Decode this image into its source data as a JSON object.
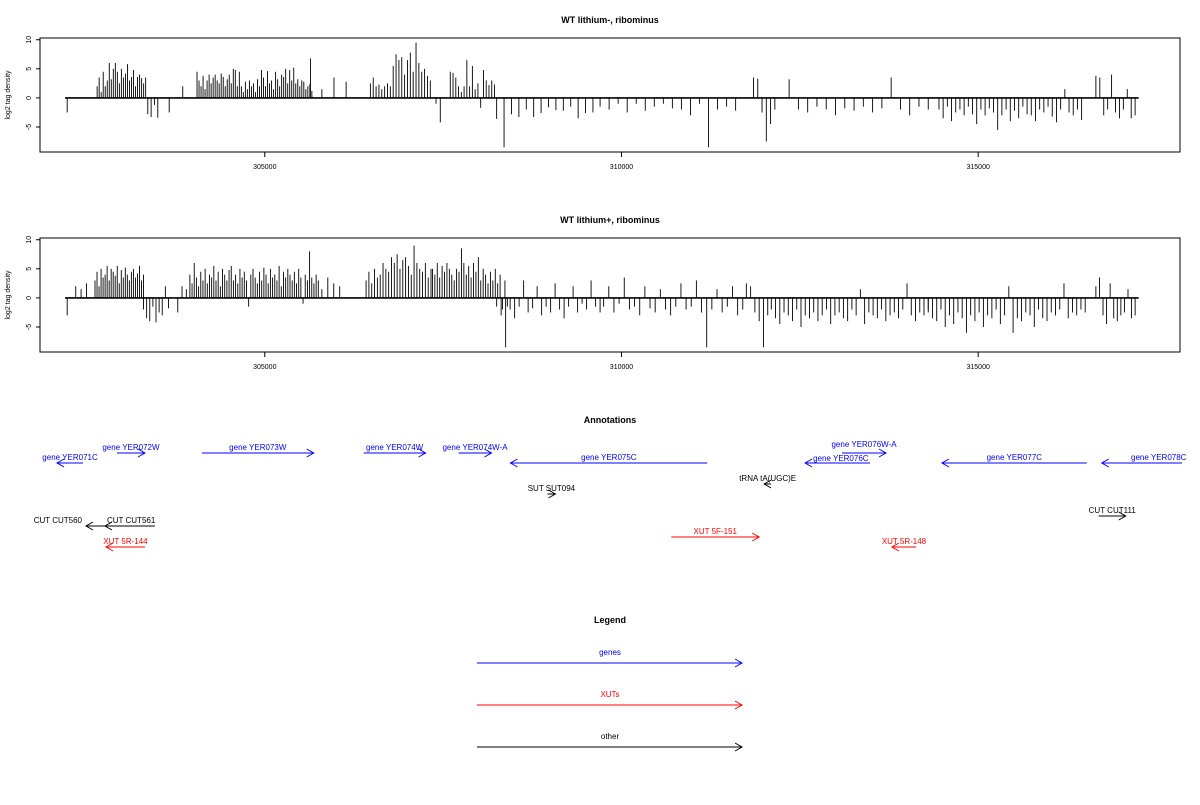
{
  "chart_data": [
    {
      "type": "bar",
      "title": "WT lithium-, ribominus",
      "ylabel": "log2 tag density",
      "xlabel": "",
      "xlim": [
        301849,
        317829
      ],
      "ylim": [
        -9.3,
        10.3
      ],
      "yticks": [
        "-5",
        "0",
        "5",
        "10"
      ],
      "xticks": [
        "305000",
        "310000",
        "315000"
      ],
      "baseline": [
        302200,
        317250
      ],
      "segments": [
        {
          "from": 302230,
          "to": 302230,
          "values": [
            -2.5
          ]
        },
        {
          "from": 302650,
          "to": 303330,
          "values": [
            2,
            3.5,
            1,
            4.5,
            2,
            3,
            6,
            3.2,
            5,
            6,
            4.5,
            2.5,
            5,
            3.5,
            4.2,
            5.8,
            3,
            3.6,
            4.8,
            2,
            3.6,
            4,
            3.4,
            2.5,
            3.5
          ]
        },
        {
          "from": 303360,
          "to": 303500,
          "values": [
            -2.8,
            -3.3,
            -1.2,
            -3.4
          ]
        },
        {
          "from": 303660,
          "to": 303660,
          "values": [
            -2.5
          ]
        },
        {
          "from": 303850,
          "to": 303850,
          "values": [
            2
          ]
        },
        {
          "from": 304050,
          "to": 305660,
          "values": [
            4.5,
            3,
            2,
            3.8,
            1.5,
            3,
            4,
            2.5,
            3.5,
            4,
            3,
            2.5,
            4.2,
            3.6,
            2,
            3.2,
            4,
            2.5,
            5,
            4.8,
            2,
            4.5,
            2,
            1,
            2.8,
            1.5,
            3,
            2,
            2.5,
            1,
            3.2,
            2,
            4.8,
            3.5,
            2,
            4.6,
            2.5,
            3,
            1.5,
            4.5,
            3.2,
            2,
            4,
            3.6,
            5,
            2.5,
            4.8,
            3,
            5.2,
            2.5,
            3.2,
            2,
            3,
            2.8,
            1.5,
            2,
            2.4,
            1.2
          ]
        },
        {
          "from": 305640,
          "to": 305640,
          "values": [
            6.8
          ]
        },
        {
          "from": 305800,
          "to": 306140,
          "values": [
            1.5,
            3.5,
            2.8
          ]
        },
        {
          "from": 306480,
          "to": 307320,
          "values": [
            2.5,
            3.5,
            2,
            2.3,
            1.5,
            2,
            2.5,
            2,
            5.5,
            7.5,
            6.5,
            7,
            4,
            6.5,
            7.8,
            4.5,
            9.5,
            6,
            4.5,
            5,
            3.8,
            3
          ]
        },
        {
          "from": 307400,
          "to": 307460,
          "values": [
            -1,
            -4.2
          ]
        },
        {
          "from": 307600,
          "to": 308220,
          "values": [
            4.5,
            4.3,
            3.5,
            2,
            1,
            2,
            6.5,
            2,
            5.5,
            1.5,
            2.5,
            -1.7,
            4.8,
            3,
            2.2,
            3,
            2.3
          ]
        },
        {
          "from": 308250,
          "to": 309600,
          "values": [
            -3.6,
            -8.5,
            -2.8,
            -3.3,
            -2,
            -3.3,
            -2.6,
            -1.6,
            -2.1,
            -2.2,
            -1.5,
            -3.5,
            -2.6,
            -2.5
          ]
        },
        {
          "from": 309700,
          "to": 311600,
          "values": [
            -1.5,
            -2,
            -1,
            -2.5,
            -1,
            -2.2,
            -1.5,
            -1,
            -1.8,
            -2,
            -3,
            -1,
            -8.5,
            -2,
            -1.5,
            -2.2
          ]
        },
        {
          "from": 311850,
          "to": 312150,
          "values": [
            3.5,
            3.3,
            -2.5,
            -7.5,
            -4.5,
            -2
          ]
        },
        {
          "from": 312350,
          "to": 314300,
          "values": [
            3.2,
            -2,
            -2.5,
            -1.5,
            -2,
            -3,
            -1.8,
            -2.2,
            -1.5,
            -2.5,
            -1.8,
            3.5,
            -2,
            -3,
            -1.5,
            -2
          ]
        },
        {
          "from": 314450,
          "to": 316450,
          "values": [
            -2,
            -3.5,
            -1.5,
            -4,
            -2.5,
            -2,
            -3,
            -1.5,
            -2.8,
            -4.5,
            -2,
            -3,
            -1.8,
            -2.5,
            -5.5,
            -3,
            -2,
            -4,
            -2.2,
            -3.5,
            -1.5,
            -2.8,
            -3,
            -4,
            -2,
            -2.5,
            -1.5,
            -3.2,
            -4.2,
            -2,
            1.5,
            -2.5,
            -3,
            -2,
            -3.8
          ]
        },
        {
          "from": 316650,
          "to": 317200,
          "values": [
            3.8,
            3.5,
            -3,
            -2,
            4,
            -2.5,
            -3.5,
            -2,
            1.5,
            -3.5,
            -3
          ]
        }
      ]
    },
    {
      "type": "bar",
      "title": "WT lithium+, ribominus",
      "ylabel": "log2 tag density",
      "xlabel": "",
      "xlim": [
        301849,
        317829
      ],
      "ylim": [
        -9.3,
        10.3
      ],
      "yticks": [
        "-5",
        "0",
        "5",
        "10"
      ],
      "xticks": [
        "305000",
        "310000",
        "315000"
      ],
      "baseline": [
        302200,
        317250
      ],
      "segments": [
        {
          "from": 302230,
          "to": 302230,
          "values": [
            -3
          ]
        },
        {
          "from": 302350,
          "to": 302500,
          "values": [
            2,
            1.5,
            2.5
          ]
        },
        {
          "from": 302620,
          "to": 303300,
          "values": [
            3,
            4.5,
            2,
            5,
            3.5,
            4,
            5.5,
            3,
            5,
            4.5,
            3.8,
            5.5,
            2.5,
            4.8,
            3.5,
            5.2,
            4,
            3,
            4.5,
            5,
            3.5,
            4.2,
            5.5,
            3,
            4
          ]
        },
        {
          "from": 303300,
          "to": 303650,
          "values": [
            -2,
            -3.5,
            -4,
            -1.5,
            -4.2,
            -2.5,
            -3,
            2,
            -1.8
          ]
        },
        {
          "from": 303780,
          "to": 303900,
          "values": [
            -2.5,
            2,
            1.5
          ]
        },
        {
          "from": 303950,
          "to": 305750,
          "values": [
            4,
            2.5,
            6,
            3.5,
            2,
            4.5,
            3,
            5,
            2.5,
            4,
            3.5,
            5.5,
            3,
            4.5,
            2,
            5,
            4,
            3,
            4.8,
            5.5,
            3,
            4,
            2.5,
            5,
            3.5,
            4.5,
            3,
            -1.5,
            4,
            5,
            3.5,
            2.5,
            4.5,
            3,
            5.2,
            4,
            2.5,
            5,
            3.5,
            4,
            3,
            5.5,
            2,
            4.5,
            3.5,
            5,
            4,
            3,
            4.5,
            2.5,
            5,
            3.5,
            -1,
            4,
            3,
            8,
            3.5,
            2.5,
            4,
            3
          ]
        },
        {
          "from": 305800,
          "to": 306050,
          "values": [
            1.5,
            3.5,
            2.5,
            2
          ]
        },
        {
          "from": 306420,
          "to": 307330,
          "values": [
            3,
            4.5,
            2.5,
            5,
            3.5,
            4,
            6,
            5,
            4.5,
            7,
            6,
            7.5,
            5,
            6.5,
            7,
            5.5,
            4,
            9,
            6,
            5,
            4.5,
            6,
            3.5,
            5
          ]
        },
        {
          "from": 307350,
          "to": 308400,
          "values": [
            5,
            4,
            6,
            3.5,
            5.5,
            4.5,
            6,
            5,
            4,
            3,
            5,
            4.5,
            8.5,
            6,
            4,
            5.5,
            3.5,
            6,
            4.5,
            7,
            3,
            5,
            4,
            2.5,
            4.5,
            3,
            5,
            2.5,
            4,
            -2,
            3,
            -1.5
          ]
        },
        {
          "from": 308250,
          "to": 309700,
          "values": [
            -1.5,
            -3,
            -8.5,
            -2,
            -3.5,
            -1.5,
            3,
            -2.5,
            -1.8,
            2,
            -3,
            -1.5,
            -2.5,
            2.5,
            -2,
            -3.5,
            -1.5,
            2,
            -2.5,
            -1,
            -2,
            3,
            -1.5,
            -2.5
          ]
        },
        {
          "from": 309750,
          "to": 311700,
          "values": [
            -1.5,
            2,
            -2.5,
            -1,
            3.5,
            -2,
            -1.5,
            -3,
            2,
            -1.8,
            -2.5,
            1.5,
            -2,
            -3,
            -1.5,
            2.5,
            -2,
            -1.5,
            3,
            -2.5,
            -8.5,
            -2,
            1.5,
            -2.5,
            -1.5,
            2,
            -3,
            -2
          ]
        },
        {
          "from": 311750,
          "to": 312050,
          "values": [
            2.5,
            2,
            -2.5,
            -4,
            -8.5,
            -3
          ]
        },
        {
          "from": 312100,
          "to": 314300,
          "values": [
            -2,
            -3.5,
            -4.5,
            -2.5,
            -3,
            -4,
            -2,
            -5,
            -3,
            -3.5,
            -2.5,
            -4,
            -3,
            -2,
            -4.5,
            -3,
            -2.5,
            -3.5,
            -4,
            -2,
            -3,
            1.5,
            -4.5,
            -2.5,
            -3,
            -3.5,
            -2,
            -4,
            -3,
            -2.5,
            -3.5,
            -2,
            2.5,
            -3,
            -4,
            -2.5,
            -3,
            -2
          ]
        },
        {
          "from": 314300,
          "to": 316500,
          "values": [
            -2.5,
            -3.5,
            -4,
            -2,
            -5,
            -3,
            -4.5,
            -2.5,
            -3.5,
            -6,
            -3,
            -4,
            -2.5,
            -5,
            -3,
            -3.5,
            -2,
            -4.5,
            -3,
            2,
            -6,
            -3.5,
            -4,
            -2.5,
            -3,
            -5,
            -2,
            -3.5,
            -4,
            -2.5,
            -3,
            -2,
            2.5,
            -3.5,
            -2.5,
            -3,
            -2,
            -2.5
          ]
        },
        {
          "from": 316650,
          "to": 317200,
          "values": [
            2,
            3.5,
            -3,
            -4.5,
            2.5,
            -3.5,
            -4,
            -3,
            -2.5,
            1.5,
            -3.5,
            -3
          ]
        }
      ]
    }
  ],
  "annotations": {
    "title": "Annotations",
    "features": [
      {
        "label": "gene YER071C",
        "category": "gene",
        "strand": "-",
        "start": 302088,
        "end": 302452,
        "track": 2
      },
      {
        "label": "gene YER072W",
        "category": "gene",
        "strand": "+",
        "start": 302928,
        "end": 303320,
        "track": 1
      },
      {
        "label": "gene YER073W",
        "category": "gene",
        "strand": "+",
        "start": 304118,
        "end": 305686,
        "track": 1
      },
      {
        "label": "gene YER074W",
        "category": "gene",
        "strand": "+",
        "start": 306386,
        "end": 307254,
        "track": 1
      },
      {
        "label": "gene YER074W-A",
        "category": "gene",
        "strand": "+",
        "start": 307716,
        "end": 308178,
        "track": 1
      },
      {
        "label": "gene YER075C",
        "category": "gene",
        "strand": "-",
        "start": 308444,
        "end": 311202,
        "track": 2
      },
      {
        "label": "gene YER076W-A",
        "category": "gene",
        "strand": "+",
        "start": 313092,
        "end": 313708,
        "track": 1
      },
      {
        "label": "gene YER076C",
        "category": "gene",
        "strand": "-",
        "start": 312574,
        "end": 313484,
        "track": 2
      },
      {
        "label": "gene YER077C",
        "category": "gene",
        "strand": "-",
        "start": 314492,
        "end": 316522,
        "track": 2
      },
      {
        "label": "gene YER078C",
        "category": "gene",
        "strand": "-",
        "start": 316732,
        "end": 318100,
        "track": 2
      },
      {
        "label": "tRNA tA(UGC)E",
        "category": "other",
        "strand": "-",
        "start": 312000,
        "end": 312098,
        "track": 3
      },
      {
        "label": "SUT SUT094",
        "category": "other",
        "strand": "+",
        "start": 308962,
        "end": 309074,
        "track": 4
      },
      {
        "label": "CUT CUT111",
        "category": "other",
        "strand": "+",
        "start": 316690,
        "end": 317068,
        "track": 5
      },
      {
        "label": "CUT CUT560",
        "category": "other",
        "strand": "-",
        "start": 302494,
        "end": 302850,
        "track": 6
      },
      {
        "label": "CUT CUT561",
        "category": "other",
        "strand": "-",
        "start": 302760,
        "end": 303460,
        "track": 6
      },
      {
        "label": "XUT 5F-151",
        "category": "xut",
        "strand": "+",
        "start": 310698,
        "end": 311930,
        "track": 7
      },
      {
        "label": "XUT 5R-144",
        "category": "xut",
        "strand": "-",
        "start": 302774,
        "end": 303320,
        "track": 8
      },
      {
        "label": "XUT 5R-148",
        "category": "xut",
        "strand": "-",
        "start": 313792,
        "end": 314128,
        "track": 8
      }
    ]
  },
  "legend": {
    "title": "Legend",
    "items": [
      {
        "label": "genes",
        "category": "gene"
      },
      {
        "label": "XUTs",
        "category": "xut"
      },
      {
        "label": "other",
        "category": "other"
      }
    ]
  },
  "colors": {
    "gene": "#0000ff",
    "xut": "#ff0000",
    "other": "#000000",
    "bar": "#000000"
  }
}
